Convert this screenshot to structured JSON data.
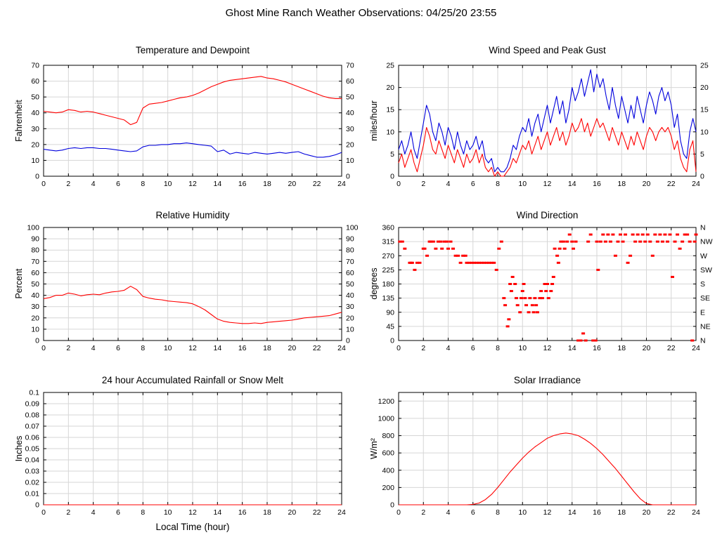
{
  "page_title": "Ghost Mine Ranch Weather Observations: 04/25/20 23:55",
  "colors": {
    "red": "#ff0000",
    "blue": "#0000dd",
    "grid": "#d6d6d6",
    "axis": "#000000"
  },
  "x_axis": {
    "label": "Local Time (hour)",
    "min": 0,
    "max": 24,
    "ticks": [
      0,
      2,
      4,
      6,
      8,
      10,
      12,
      14,
      16,
      18,
      20,
      22,
      24
    ]
  },
  "chart_data": [
    {
      "type": "line",
      "title": "Temperature and Dewpoint",
      "ylabel": "Fahrenheit",
      "ylim": [
        0,
        70
      ],
      "yticks": [
        0,
        10,
        20,
        30,
        40,
        50,
        60,
        70
      ],
      "ytick_labels_right": "mirror",
      "series": [
        {
          "name": "Temperature",
          "color": "red",
          "x0": 0,
          "dx": 0.5,
          "values": [
            41,
            40.5,
            40,
            40.5,
            42,
            41.5,
            40.5,
            41,
            40.5,
            39.5,
            38.5,
            37.5,
            36.5,
            35.5,
            32.5,
            34,
            43,
            45.5,
            46,
            46.5,
            47.5,
            48.5,
            49.5,
            50,
            51,
            52.5,
            54.5,
            56.5,
            58,
            59.5,
            60.5,
            61,
            61.5,
            62,
            62.5,
            63,
            62,
            61.5,
            60.5,
            59.5,
            58,
            56.5,
            55,
            53.5,
            52,
            50.5,
            49.5,
            49,
            49
          ]
        },
        {
          "name": "Dewpoint",
          "color": "blue",
          "x0": 0,
          "dx": 0.5,
          "values": [
            17,
            16.5,
            16,
            16.5,
            17.5,
            18,
            17.5,
            18,
            18,
            17.5,
            17.5,
            17,
            16.5,
            16,
            15.5,
            16,
            18.5,
            19.5,
            19.5,
            20,
            20,
            20.5,
            20.5,
            21,
            20.5,
            20,
            19.5,
            19,
            15.5,
            16.5,
            14,
            15,
            14.5,
            14,
            15,
            14.5,
            14,
            14.5,
            15,
            14.5,
            15,
            15.5,
            14,
            13,
            12,
            12,
            12.5,
            13.5,
            15
          ]
        }
      ]
    },
    {
      "type": "line",
      "title": "Wind Speed and Peak Gust",
      "ylabel": "miles/hour",
      "ylim": [
        0,
        25
      ],
      "yticks": [
        0,
        5,
        10,
        15,
        20,
        25
      ],
      "ytick_labels_right": "mirror",
      "series": [
        {
          "name": "Peak Gust",
          "color": "blue",
          "x0": 0,
          "dx": 0.25,
          "values": [
            6,
            8,
            5,
            7,
            10,
            6,
            4,
            8,
            12,
            16,
            14,
            10,
            8,
            12,
            10,
            7,
            11,
            9,
            6,
            10,
            7,
            5,
            8,
            6,
            7,
            9,
            6,
            8,
            4,
            3,
            4,
            1,
            2,
            1,
            1,
            2,
            4,
            7,
            6,
            9,
            11,
            10,
            13,
            9,
            12,
            14,
            10,
            13,
            16,
            12,
            15,
            18,
            14,
            17,
            12,
            15,
            20,
            17,
            19,
            22,
            18,
            21,
            24,
            19,
            23,
            20,
            22,
            18,
            15,
            20,
            16,
            13,
            18,
            15,
            12,
            16,
            13,
            18,
            15,
            12,
            16,
            19,
            17,
            14,
            18,
            20,
            17,
            19,
            16,
            11,
            14,
            8,
            5,
            4,
            10,
            13,
            10
          ]
        },
        {
          "name": "Wind Speed",
          "color": "red",
          "x0": 0,
          "dx": 0.25,
          "values": [
            3,
            5,
            2,
            4,
            6,
            3,
            1,
            4,
            7,
            11,
            9,
            6,
            5,
            8,
            6,
            4,
            7,
            5,
            3,
            6,
            4,
            2,
            5,
            3,
            4,
            6,
            3,
            5,
            2,
            1,
            2,
            0,
            1,
            0,
            0,
            1,
            2,
            4,
            3,
            5,
            7,
            6,
            8,
            5,
            7,
            9,
            6,
            8,
            10,
            7,
            9,
            11,
            8,
            10,
            7,
            9,
            12,
            10,
            11,
            13,
            10,
            12,
            9,
            11,
            13,
            11,
            12,
            10,
            8,
            11,
            9,
            7,
            10,
            8,
            6,
            9,
            7,
            10,
            8,
            6,
            9,
            11,
            10,
            8,
            10,
            11,
            10,
            11,
            9,
            6,
            8,
            4,
            2,
            1,
            6,
            8,
            1
          ]
        }
      ]
    },
    {
      "type": "line",
      "title": "Relative Humidity",
      "ylabel": "Percent",
      "ylim": [
        0,
        100
      ],
      "yticks": [
        0,
        10,
        20,
        30,
        40,
        50,
        60,
        70,
        80,
        90,
        100
      ],
      "ytick_labels_right": "mirror",
      "series": [
        {
          "name": "Relative Humidity",
          "color": "red",
          "x0": 0,
          "dx": 0.5,
          "values": [
            37,
            38,
            40,
            40,
            42,
            41,
            39.5,
            40.5,
            41,
            40.5,
            42,
            43,
            43.5,
            44.5,
            48,
            45,
            39,
            37.5,
            36.5,
            36,
            35,
            34.5,
            34,
            33.5,
            32.5,
            30,
            27,
            23,
            19,
            17,
            16,
            15.5,
            15,
            15,
            15.5,
            15,
            16,
            16.5,
            17,
            17.5,
            18,
            19,
            20,
            20.5,
            21,
            21.5,
            22,
            23.5,
            25
          ]
        }
      ]
    },
    {
      "type": "scatter",
      "title": "Wind Direction",
      "ylabel": "degrees",
      "ylim": [
        0,
        360
      ],
      "yticks": [
        0,
        45,
        90,
        135,
        180,
        225,
        270,
        315,
        360
      ],
      "ytick_labels_right": [
        "N",
        "NE",
        "E",
        "SE",
        "S",
        "SW",
        "W",
        "NW",
        "N"
      ],
      "series": [
        {
          "name": "Wind Direction",
          "color": "red",
          "points": [
            [
              0.1,
              315
            ],
            [
              0.3,
              315
            ],
            [
              0.5,
              292.5
            ],
            [
              0.9,
              247.5
            ],
            [
              1.0,
              247.5
            ],
            [
              1.1,
              247.5
            ],
            [
              1.3,
              225
            ],
            [
              1.5,
              247.5
            ],
            [
              1.7,
              247.5
            ],
            [
              2.0,
              292.5
            ],
            [
              2.1,
              292.5
            ],
            [
              2.3,
              270
            ],
            [
              2.5,
              315
            ],
            [
              2.6,
              315
            ],
            [
              2.8,
              315
            ],
            [
              3.0,
              292.5
            ],
            [
              3.2,
              315
            ],
            [
              3.4,
              315
            ],
            [
              3.5,
              292.5
            ],
            [
              3.7,
              315
            ],
            [
              3.9,
              315
            ],
            [
              4.0,
              292.5
            ],
            [
              4.2,
              315
            ],
            [
              4.4,
              292.5
            ],
            [
              4.6,
              270
            ],
            [
              4.8,
              270
            ],
            [
              5.0,
              247.5
            ],
            [
              5.2,
              270
            ],
            [
              5.4,
              270
            ],
            [
              5.5,
              247.5
            ],
            [
              5.7,
              247.5
            ],
            [
              5.9,
              247.5
            ],
            [
              6.1,
              247.5
            ],
            [
              6.3,
              247.5
            ],
            [
              6.5,
              247.5
            ],
            [
              6.7,
              247.5
            ],
            [
              6.9,
              247.5
            ],
            [
              7.1,
              247.5
            ],
            [
              7.3,
              247.5
            ],
            [
              7.5,
              247.5
            ],
            [
              7.7,
              247.5
            ],
            [
              7.9,
              225
            ],
            [
              8.1,
              292.5
            ],
            [
              8.3,
              315
            ],
            [
              8.5,
              135
            ],
            [
              8.6,
              112.5
            ],
            [
              8.8,
              45
            ],
            [
              8.9,
              67.5
            ],
            [
              9.0,
              180
            ],
            [
              9.1,
              157.5
            ],
            [
              9.2,
              202.5
            ],
            [
              9.4,
              180
            ],
            [
              9.5,
              135
            ],
            [
              9.6,
              112.5
            ],
            [
              9.8,
              90
            ],
            [
              9.9,
              135
            ],
            [
              10.0,
              157.5
            ],
            [
              10.1,
              180
            ],
            [
              10.2,
              135
            ],
            [
              10.3,
              112.5
            ],
            [
              10.5,
              90
            ],
            [
              10.6,
              135
            ],
            [
              10.8,
              112.5
            ],
            [
              10.9,
              90
            ],
            [
              11.0,
              135
            ],
            [
              11.1,
              112.5
            ],
            [
              11.2,
              90
            ],
            [
              11.4,
              135
            ],
            [
              11.5,
              157.5
            ],
            [
              11.6,
              135
            ],
            [
              11.8,
              180
            ],
            [
              11.9,
              157.5
            ],
            [
              12.0,
              180
            ],
            [
              12.1,
              135
            ],
            [
              12.3,
              157.5
            ],
            [
              12.4,
              180
            ],
            [
              12.5,
              202.5
            ],
            [
              12.6,
              292.5
            ],
            [
              12.8,
              270
            ],
            [
              12.9,
              247.5
            ],
            [
              13.0,
              292.5
            ],
            [
              13.1,
              315
            ],
            [
              13.3,
              315
            ],
            [
              13.4,
              292.5
            ],
            [
              13.6,
              315
            ],
            [
              13.8,
              337.5
            ],
            [
              14.0,
              315
            ],
            [
              14.1,
              292.5
            ],
            [
              14.3,
              315
            ],
            [
              14.5,
              0
            ],
            [
              14.7,
              0
            ],
            [
              14.9,
              22.5
            ],
            [
              15.1,
              0
            ],
            [
              15.3,
              315
            ],
            [
              15.5,
              337.5
            ],
            [
              15.7,
              0
            ],
            [
              15.9,
              0
            ],
            [
              16.0,
              315
            ],
            [
              16.1,
              225
            ],
            [
              16.3,
              315
            ],
            [
              16.5,
              337.5
            ],
            [
              16.7,
              315
            ],
            [
              16.9,
              337.5
            ],
            [
              17.1,
              315
            ],
            [
              17.3,
              337.5
            ],
            [
              17.5,
              270
            ],
            [
              17.7,
              315
            ],
            [
              17.9,
              337.5
            ],
            [
              18.1,
              315
            ],
            [
              18.3,
              337.5
            ],
            [
              18.5,
              247.5
            ],
            [
              18.7,
              270
            ],
            [
              18.9,
              337.5
            ],
            [
              19.1,
              315
            ],
            [
              19.3,
              337.5
            ],
            [
              19.5,
              315
            ],
            [
              19.7,
              337.5
            ],
            [
              19.9,
              315
            ],
            [
              20.1,
              337.5
            ],
            [
              20.3,
              315
            ],
            [
              20.5,
              270
            ],
            [
              20.7,
              337.5
            ],
            [
              20.9,
              315
            ],
            [
              21.1,
              337.5
            ],
            [
              21.3,
              315
            ],
            [
              21.5,
              337.5
            ],
            [
              21.7,
              315
            ],
            [
              21.9,
              337.5
            ],
            [
              22.1,
              202.5
            ],
            [
              22.3,
              315
            ],
            [
              22.5,
              337.5
            ],
            [
              22.7,
              292.5
            ],
            [
              22.9,
              315
            ],
            [
              23.1,
              337.5
            ],
            [
              23.3,
              337.5
            ],
            [
              23.5,
              315
            ],
            [
              23.7,
              0
            ],
            [
              23.9,
              315
            ],
            [
              24.0,
              337.5
            ]
          ]
        }
      ]
    },
    {
      "type": "line",
      "title": "24 hour Accumulated Rainfall or Snow Melt",
      "ylabel": "Inches",
      "ylim": [
        0,
        0.1
      ],
      "yticks": [
        0,
        0.01,
        0.02,
        0.03,
        0.04,
        0.05,
        0.06,
        0.07,
        0.08,
        0.09,
        0.1
      ],
      "ytick_labels_right": null,
      "series": [
        {
          "name": "Accumulated Rainfall",
          "color": "red",
          "x0": 0,
          "dx": 24,
          "values": [
            0,
            0
          ]
        }
      ]
    },
    {
      "type": "line",
      "title": "Solar Irradiance",
      "ylabel": "W/m²",
      "ylim": [
        0,
        1300
      ],
      "yticks": [
        0,
        200,
        400,
        600,
        800,
        1000,
        1200
      ],
      "ytick_labels_right": null,
      "series": [
        {
          "name": "Solar Irradiance",
          "color": "red",
          "x0": 0,
          "dx": 0.5,
          "values": [
            0,
            0,
            0,
            0,
            0,
            0,
            0,
            0,
            0,
            0,
            0,
            0,
            5,
            20,
            60,
            120,
            200,
            290,
            380,
            460,
            540,
            610,
            670,
            720,
            770,
            800,
            820,
            830,
            820,
            800,
            760,
            710,
            650,
            580,
            500,
            420,
            330,
            240,
            150,
            70,
            15,
            0,
            0,
            0,
            0,
            0,
            0,
            0,
            0
          ]
        }
      ]
    }
  ]
}
